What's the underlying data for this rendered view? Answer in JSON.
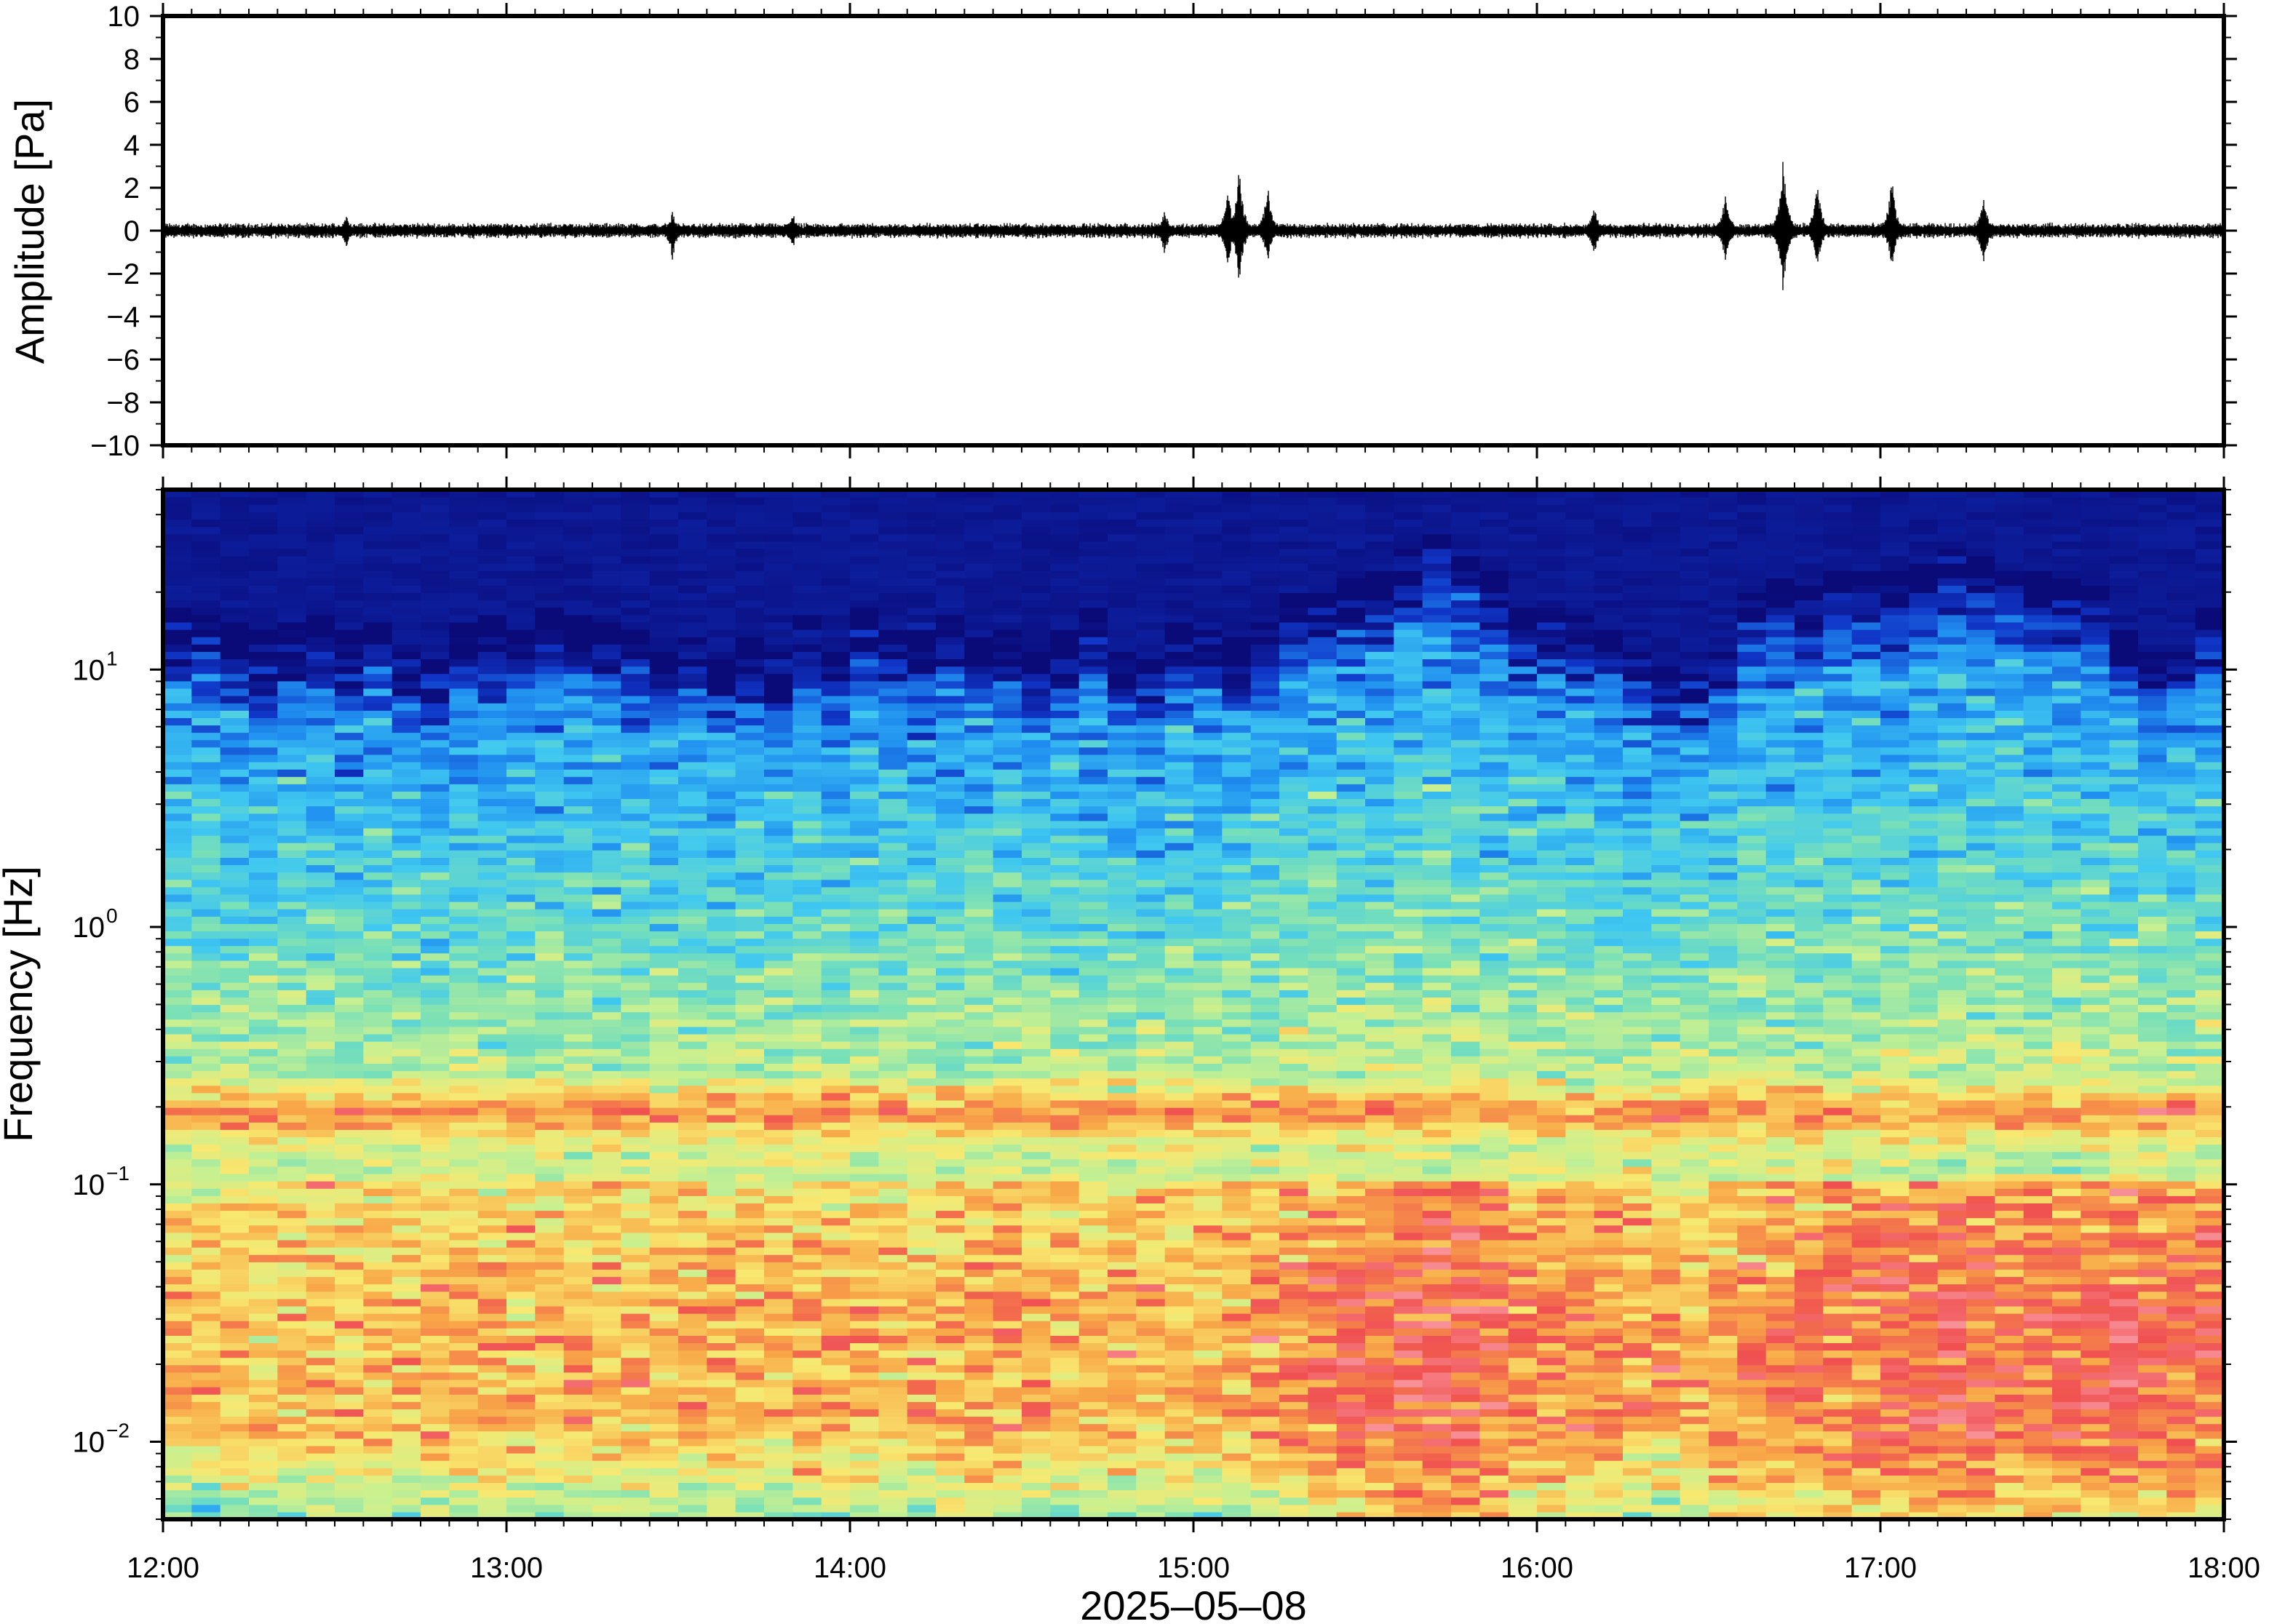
{
  "chart_data": [
    {
      "type": "line",
      "panel": "waveform",
      "ylabel": "Amplitude [Pa]",
      "ylim": [
        -10,
        10
      ],
      "yticks": [
        10,
        8,
        6,
        4,
        2,
        0,
        -2,
        -4,
        -6,
        -8,
        -10
      ],
      "ytick_labels": [
        "10",
        "8",
        "6",
        "4",
        "2",
        "0",
        "−2",
        "−4",
        "−6",
        "−8",
        "−10"
      ],
      "xlim": [
        "12:00",
        "18:00"
      ],
      "line_color": "#000000",
      "noise_amplitude": 0.3,
      "bursts": [
        {
          "time": "12:32",
          "peak": 0.8,
          "trough": -0.9
        },
        {
          "time": "13:29",
          "peak": 0.9,
          "trough": -1.4
        },
        {
          "time": "13:50",
          "peak": 0.9,
          "trough": -0.9
        },
        {
          "time": "14:55",
          "peak": 1.0,
          "trough": -1.2
        },
        {
          "time": "15:06",
          "peak": 2.0,
          "trough": -1.8
        },
        {
          "time": "15:08",
          "peak": 3.2,
          "trough": -2.7
        },
        {
          "time": "15:13",
          "peak": 2.3,
          "trough": -1.6
        },
        {
          "time": "16:10",
          "peak": 1.2,
          "trough": -1.2
        },
        {
          "time": "16:33",
          "peak": 2.0,
          "trough": -1.7
        },
        {
          "time": "16:43",
          "peak": 3.7,
          "trough": -3.2
        },
        {
          "time": "16:49",
          "peak": 2.5,
          "trough": -1.9
        },
        {
          "time": "17:02",
          "peak": 2.6,
          "trough": -1.8
        },
        {
          "time": "17:18",
          "peak": 1.9,
          "trough": -1.9
        }
      ]
    },
    {
      "type": "heatmap",
      "panel": "spectrogram",
      "ylabel": "Frequency [Hz]",
      "yscale": "log",
      "ylim": [
        0.005,
        50
      ],
      "yticks": [
        {
          "value": 10,
          "base": "10",
          "exp": "1"
        },
        {
          "value": 1,
          "base": "10",
          "exp": "0"
        },
        {
          "value": 0.1,
          "base": "10",
          "exp": "−1"
        },
        {
          "value": 0.01,
          "base": "10",
          "exp": "−2"
        }
      ],
      "xlabel": "2025–05–08",
      "xlim": [
        "12:00",
        "18:00"
      ],
      "xticks": [
        "12:00",
        "13:00",
        "14:00",
        "15:00",
        "16:00",
        "17:00",
        "18:00"
      ],
      "colormap": [
        "#0a0a78",
        "#1036c8",
        "#2090f0",
        "#40c8f0",
        "#78e0b8",
        "#c8f090",
        "#f8e870",
        "#f8a848",
        "#f05050",
        "#f89098"
      ],
      "time_columns": 72,
      "column_activity": [
        0.35,
        0.38,
        0.4,
        0.36,
        0.38,
        0.4,
        0.34,
        0.42,
        0.36,
        0.4,
        0.38,
        0.4,
        0.35,
        0.38,
        0.4,
        0.36,
        0.4,
        0.38,
        0.42,
        0.4,
        0.45,
        0.42,
        0.5,
        0.48,
        0.45,
        0.42,
        0.4,
        0.44,
        0.48,
        0.46,
        0.44,
        0.42,
        0.4,
        0.46,
        0.44,
        0.42,
        0.4,
        0.45,
        0.5,
        0.62,
        0.72,
        0.74,
        0.8,
        0.86,
        0.92,
        0.9,
        0.78,
        0.66,
        0.62,
        0.58,
        0.56,
        0.5,
        0.48,
        0.44,
        0.52,
        0.65,
        0.72,
        0.68,
        0.66,
        0.7,
        0.78,
        0.82,
        0.88,
        0.8,
        0.72,
        0.7,
        0.76,
        0.82,
        0.8,
        0.78,
        0.74,
        0.76
      ],
      "column_ceiling_hz": [
        18,
        16,
        15,
        14,
        15,
        16,
        14,
        15,
        12,
        11,
        15,
        16,
        14,
        17,
        16,
        15,
        14,
        12,
        13,
        11,
        13,
        12,
        16,
        12,
        17,
        14,
        15,
        16,
        13,
        14,
        12,
        14,
        17,
        12,
        11,
        15,
        14,
        13,
        15,
        20,
        20,
        22,
        24,
        30,
        34,
        28,
        24,
        18,
        17,
        16,
        14,
        12,
        10,
        11,
        12,
        20,
        22,
        21,
        24,
        25,
        24,
        26,
        30,
        28,
        25,
        24,
        22,
        21,
        14,
        12,
        13,
        18
      ]
    }
  ]
}
